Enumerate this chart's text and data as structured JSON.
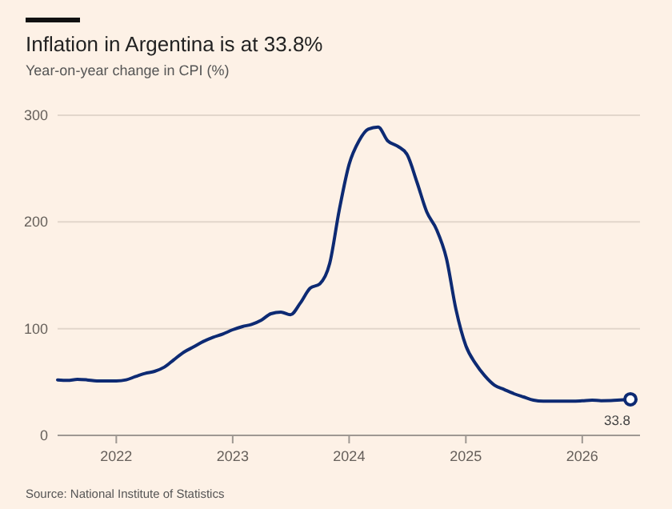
{
  "chart_data": {
    "type": "line",
    "title": "Inflation in Argentina is at 33.8%",
    "subtitle": "Year-on-year change in CPI (%)",
    "x": [
      "2021-07",
      "2021-08",
      "2021-09",
      "2021-10",
      "2021-11",
      "2021-12",
      "2022-01",
      "2022-02",
      "2022-03",
      "2022-04",
      "2022-05",
      "2022-06",
      "2022-07",
      "2022-08",
      "2022-09",
      "2022-10",
      "2022-11",
      "2022-12",
      "2023-01",
      "2023-02",
      "2023-03",
      "2023-04",
      "2023-05",
      "2023-06",
      "2023-07",
      "2023-08",
      "2023-09",
      "2023-10",
      "2023-11",
      "2023-12",
      "2024-01",
      "2024-02",
      "2024-03",
      "2024-04",
      "2024-05",
      "2024-06",
      "2024-07",
      "2024-08",
      "2024-09",
      "2024-10",
      "2024-11",
      "2024-12",
      "2025-01",
      "2025-02",
      "2025-03",
      "2025-04",
      "2025-05",
      "2025-06",
      "2025-07",
      "2025-08",
      "2025-09",
      "2025-10",
      "2025-11",
      "2025-12",
      "2026-01",
      "2026-02",
      "2026-03",
      "2026-04",
      "2026-05",
      "2026-06"
    ],
    "series": [
      {
        "color": "#0d2a73",
        "values": [
          52,
          51.5,
          52.5,
          52,
          51,
          51,
          51,
          52,
          55,
          58,
          60,
          64,
          71,
          78,
          83,
          88,
          92,
          95,
          99,
          102,
          104,
          108,
          114,
          115.5,
          113,
          124,
          138,
          142,
          161,
          211,
          254,
          276,
          287,
          289,
          276,
          271,
          263,
          237,
          209,
          193,
          166,
          118,
          84,
          67,
          56,
          47,
          43,
          39,
          36,
          33,
          32,
          32,
          32,
          32,
          32.4,
          33,
          32.5,
          32.6,
          33.2,
          33.8
        ]
      }
    ],
    "xlim": [
      "2021-07",
      "2026-07"
    ],
    "xticks": [
      {
        "value": "2022",
        "label": "2022"
      },
      {
        "value": "2023",
        "label": "2023"
      },
      {
        "value": "2024",
        "label": "2024"
      },
      {
        "value": "2025",
        "label": "2025"
      },
      {
        "value": "2026",
        "label": "2026"
      }
    ],
    "ylim": [
      0,
      300
    ],
    "yticks": [
      0,
      100,
      200,
      300
    ],
    "grid": "y",
    "marker": "none",
    "line_style": "solid",
    "annotations": [
      {
        "text": "33.8",
        "x": "2026-06",
        "y": 33.8
      },
      "Source: National Institute of Statistics"
    ]
  }
}
